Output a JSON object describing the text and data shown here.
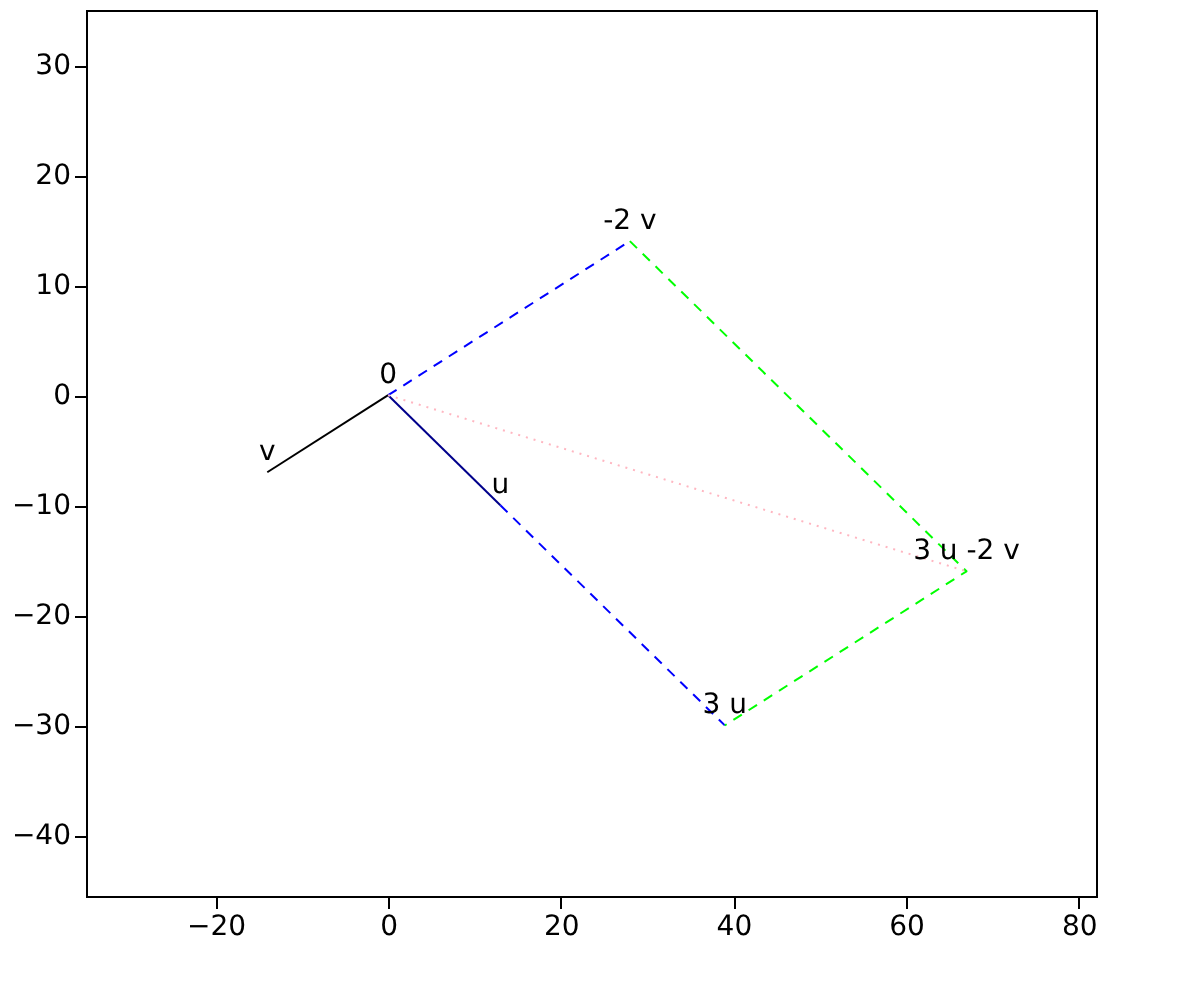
{
  "chart_data": {
    "type": "line",
    "xlim": [
      -35,
      82
    ],
    "ylim": [
      -45.5,
      35
    ],
    "xticks": [
      -20,
      0,
      20,
      40,
      60,
      80
    ],
    "yticks": [
      -40,
      -30,
      -20,
      -10,
      0,
      10,
      20,
      30
    ],
    "grid": false,
    "series": [
      {
        "x": [
          0,
          -14
        ],
        "values": [
          0,
          -7
        ],
        "color": "#000000",
        "line_style": "solid"
      },
      {
        "x": [
          0,
          13
        ],
        "values": [
          0,
          -10
        ],
        "color": "#00008b",
        "line_style": "solid"
      },
      {
        "x": [
          0,
          28
        ],
        "values": [
          0,
          14
        ],
        "color": "#0000ff",
        "line_style": "dashed"
      },
      {
        "x": [
          13,
          39
        ],
        "values": [
          -10,
          -30
        ],
        "color": "#0000ff",
        "line_style": "dashed"
      },
      {
        "x": [
          28,
          67,
          39
        ],
        "values": [
          14,
          -16,
          -30
        ],
        "color": "#00ff00",
        "line_style": "dashed"
      },
      {
        "x": [
          0,
          67
        ],
        "values": [
          0,
          -16
        ],
        "color": "#ffb6c1",
        "line_style": "dotted"
      }
    ],
    "annotations": [
      {
        "text": "0",
        "x": 0,
        "y": 0
      },
      {
        "text": "v",
        "x": -14,
        "y": -7
      },
      {
        "text": "u",
        "x": 13,
        "y": -10
      },
      {
        "text": "-2 v",
        "x": 28,
        "y": 14
      },
      {
        "text": "3 u",
        "x": 39,
        "y": -30
      },
      {
        "text": "3 u -2 v",
        "x": 67,
        "y": -16
      }
    ]
  }
}
